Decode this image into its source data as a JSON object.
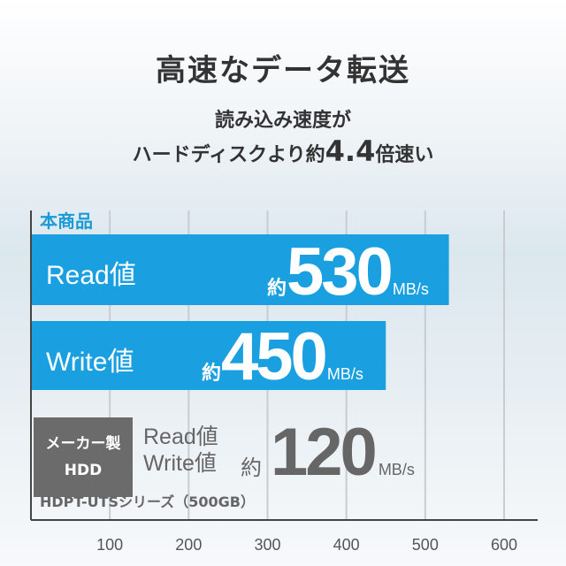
{
  "header": {
    "title": "高速なデータ転送",
    "subtitle_line1": "読み込み速度が",
    "subtitle_line2_pre": "ハードディスクより約",
    "subtitle_line2_big": "4.4",
    "subtitle_line2_post": "倍速い"
  },
  "chart_data": {
    "type": "bar",
    "orientation": "horizontal",
    "xlim": [
      0,
      600
    ],
    "x_ticks": [
      "100",
      "200",
      "300",
      "400",
      "500",
      "600"
    ],
    "grid": true,
    "group_label": "本商品",
    "series": [
      {
        "label": "Read値",
        "value": 530,
        "prefix": "約",
        "value_text": "530",
        "unit": "MB/s"
      },
      {
        "label": "Write値",
        "value": 450,
        "prefix": "約",
        "value_text": "450",
        "unit": "MB/s"
      }
    ],
    "comparison": {
      "badge_line1": "メーカー製",
      "badge_line2": "HDD",
      "label_line1": "Read値",
      "label_line2": "Write値",
      "prefix": "約",
      "value": 120,
      "value_text": "120",
      "unit": "MB/s",
      "model": "HDPT-UTSシリーズ（500GB）"
    },
    "colors": {
      "bar": "#1aa0e0",
      "hdd": "#6b6b6b",
      "grid": "#c8cdd2",
      "axis": "#444444"
    }
  }
}
